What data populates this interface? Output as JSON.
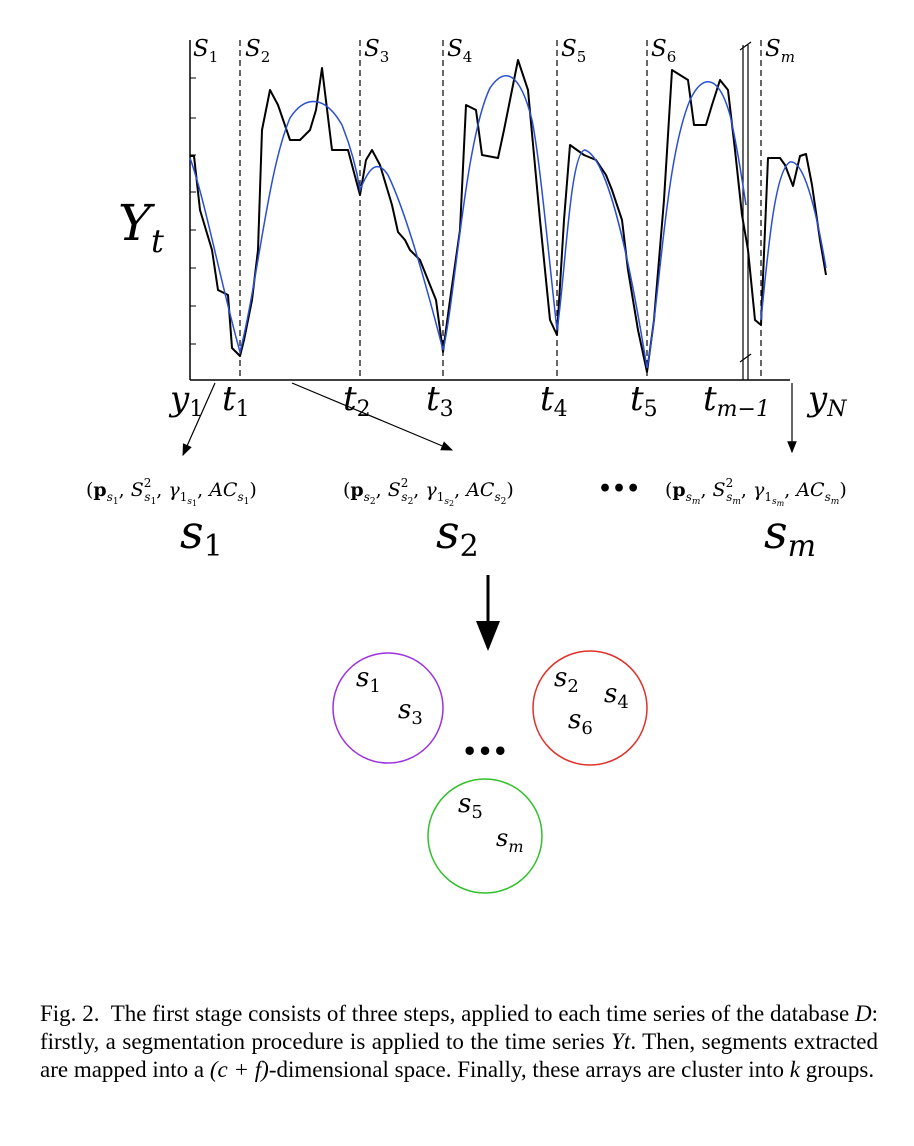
{
  "segments": [
    {
      "label": "S",
      "sub": "1"
    },
    {
      "label": "S",
      "sub": "2"
    },
    {
      "label": "S",
      "sub": "3"
    },
    {
      "label": "S",
      "sub": "4"
    },
    {
      "label": "S",
      "sub": "5"
    },
    {
      "label": "S",
      "sub": "6"
    },
    {
      "label": "S",
      "sub": "m"
    }
  ],
  "axis": {
    "y_label": "Y",
    "y_label_sub": "t",
    "x_ticks": [
      {
        "label": "y",
        "sub": "1"
      },
      {
        "label": "t",
        "sub": "1"
      },
      {
        "label": "t",
        "sub": "2"
      },
      {
        "label": "t",
        "sub": "3"
      },
      {
        "label": "t",
        "sub": "4"
      },
      {
        "label": "t",
        "sub": "5"
      },
      {
        "label": "t",
        "sub": "m−1"
      },
      {
        "label": "y",
        "sub": "N"
      }
    ]
  },
  "features": [
    {
      "seg": "s",
      "sub": "1"
    },
    {
      "seg": "s",
      "sub": "2"
    },
    {
      "seg": "s",
      "sub": "m"
    }
  ],
  "ellipsis": "•••",
  "clusters": [
    {
      "color": "#9b30e0",
      "items": [
        {
          "s": "s",
          "sub": "1"
        },
        {
          "s": "s",
          "sub": "3"
        }
      ]
    },
    {
      "color": "#e0302a",
      "items": [
        {
          "s": "s",
          "sub": "2"
        },
        {
          "s": "s",
          "sub": "4"
        },
        {
          "s": "s",
          "sub": "6"
        }
      ]
    },
    {
      "color": "#33c02a",
      "items": [
        {
          "s": "s",
          "sub": "5"
        },
        {
          "s": "s",
          "sub": "m"
        }
      ]
    }
  ],
  "caption": {
    "prefix": "Fig. 2.",
    "text_1": "The first stage consists of three steps, applied to each time series of the database ",
    "D": "D",
    "text_2": ": firstly, a segmentation procedure is applied to the time series ",
    "Yt": "Yt",
    "text_3": ". Then, segments extracted are mapped into a ",
    "dim": "(c + f)",
    "text_4": "-dimensional space. Finally, these arrays are cluster into ",
    "k": "k",
    "text_5": " groups."
  },
  "colors": {
    "fit": "#2a4fd1",
    "series": "#000000"
  }
}
